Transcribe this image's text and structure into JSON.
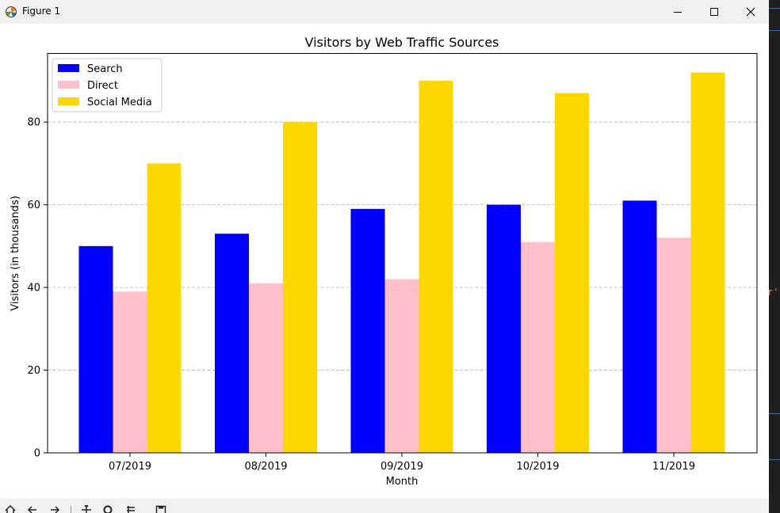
{
  "window": {
    "title": "Figure 1"
  },
  "editor_fragment": "r'}",
  "icons": {
    "app": "matplotlib-figure-icon",
    "minimize": "minimize-icon",
    "maximize": "maximize-icon",
    "close": "close-icon"
  },
  "colors": {
    "search": "#0000ff",
    "direct": "#ffc0cb",
    "social": "#ffd700",
    "grid": "#b0b0b0"
  },
  "chart_data": {
    "type": "bar",
    "title": "Visitors by Web Traffic Sources",
    "xlabel": "Month",
    "ylabel": "Visitors (in thousands)",
    "categories": [
      "07/2019",
      "08/2019",
      "09/2019",
      "10/2019",
      "11/2019"
    ],
    "series": [
      {
        "name": "Search",
        "color": "#0000ff",
        "values": [
          50,
          53,
          59,
          60,
          61
        ]
      },
      {
        "name": "Direct",
        "color": "#ffc0cb",
        "values": [
          39,
          41,
          42,
          51,
          52
        ]
      },
      {
        "name": "Social Media",
        "color": "#ffd700",
        "values": [
          70,
          80,
          90,
          87,
          92
        ]
      }
    ],
    "ylim": [
      0,
      96.6
    ],
    "yticks": [
      0,
      20,
      40,
      60,
      80
    ],
    "ytick_labels": [
      "0",
      "20",
      "40",
      "60",
      "80"
    ],
    "grid": "y-dashed",
    "legend": "upper-left"
  }
}
